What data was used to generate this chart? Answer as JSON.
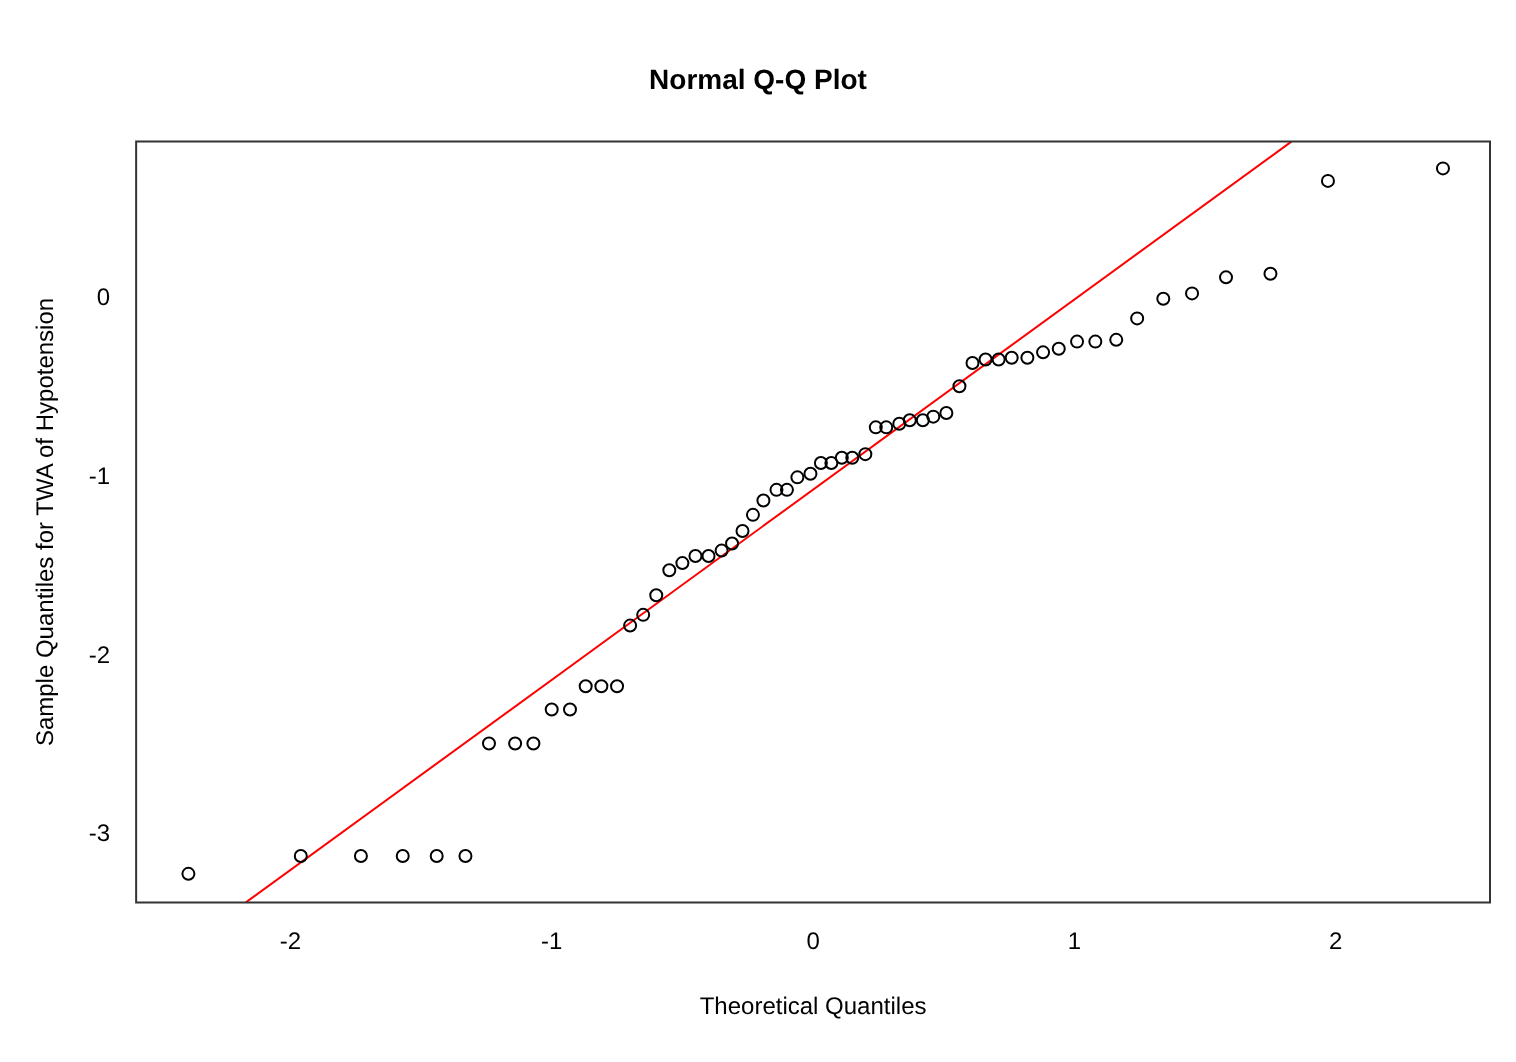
{
  "chart_data": {
    "type": "scatter",
    "title": "Normal Q-Q Plot",
    "xlabel": "Theoretical Quantiles",
    "ylabel": "Sample Quantiles for TWA of Hypotension",
    "xlim": [
      -2.59,
      2.59
    ],
    "xticks": [
      -2,
      -1,
      0,
      1,
      2
    ],
    "ylim": [
      -3.38,
      0.88
    ],
    "yticks": [
      -3,
      -2,
      -1,
      0
    ],
    "grid": false,
    "legend": false,
    "series": [
      {
        "color": "#000000",
        "marker": "circle",
        "x": [
          -2.39,
          -1.96,
          -1.73,
          -1.57,
          -1.44,
          -1.33,
          -1.24,
          -1.14,
          -1.07,
          -1.0,
          -0.93,
          -0.87,
          -0.81,
          -0.75,
          -0.7,
          -0.65,
          -0.6,
          -0.55,
          -0.5,
          -0.45,
          -0.4,
          -0.35,
          -0.31,
          -0.27,
          -0.23,
          -0.19,
          -0.14,
          -0.1,
          -0.06,
          -0.01,
          0.03,
          0.07,
          0.11,
          0.15,
          0.2,
          0.24,
          0.28,
          0.33,
          0.37,
          0.42,
          0.46,
          0.51,
          0.56,
          0.61,
          0.66,
          0.71,
          0.76,
          0.82,
          0.88,
          0.94,
          1.01,
          1.08,
          1.16,
          1.24,
          1.34,
          1.45,
          1.58,
          1.75,
          1.97,
          2.41
        ],
        "values": [
          -3.22,
          -3.12,
          -3.12,
          -3.12,
          -3.12,
          -3.12,
          -2.49,
          -2.49,
          -2.49,
          -2.3,
          -2.3,
          -2.17,
          -2.17,
          -2.17,
          -1.83,
          -1.77,
          -1.66,
          -1.52,
          -1.48,
          -1.44,
          -1.44,
          -1.41,
          -1.37,
          -1.3,
          -1.21,
          -1.13,
          -1.07,
          -1.07,
          -1.0,
          -0.98,
          -0.92,
          -0.92,
          -0.89,
          -0.89,
          -0.87,
          -0.72,
          -0.72,
          -0.7,
          -0.68,
          -0.68,
          -0.66,
          -0.64,
          -0.49,
          -0.36,
          -0.34,
          -0.34,
          -0.33,
          -0.33,
          -0.3,
          -0.28,
          -0.24,
          -0.24,
          -0.23,
          -0.11,
          0.0,
          0.03,
          0.12,
          0.14,
          0.66,
          0.73
        ]
      },
      {
        "type": "line",
        "color": "#ff0000",
        "marker": "none",
        "line_style": "solid",
        "x": [
          -2.17,
          1.83
        ],
        "values": [
          -3.38,
          0.88
        ]
      }
    ]
  }
}
